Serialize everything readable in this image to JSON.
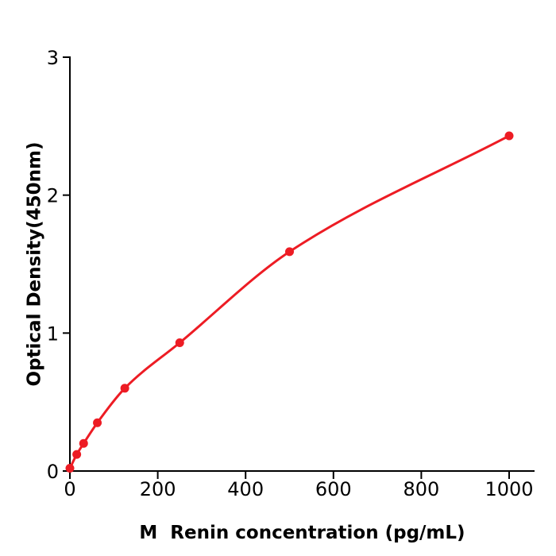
{
  "figure": {
    "background": "#ffffff"
  },
  "chart_data": {
    "type": "line",
    "title": "",
    "xlabel": "M  Renin concentration (pg/mL)",
    "ylabel": "Optical Density(450nm)",
    "x": [
      0,
      15.6,
      31.2,
      62.5,
      125,
      250,
      500,
      1000
    ],
    "y": [
      0.02,
      0.12,
      0.2,
      0.35,
      0.6,
      0.93,
      1.59,
      2.43
    ],
    "x_ticks": [
      0,
      200,
      400,
      600,
      800,
      1000
    ],
    "y_ticks": [
      0,
      1,
      2,
      3
    ],
    "xlim": [
      0,
      1058
    ],
    "ylim": [
      0,
      3
    ],
    "grid": false,
    "legend": null,
    "line_color": "#ED1C24",
    "axis_color": "#000000",
    "marker": "circle",
    "marker_radius": 5.5,
    "line_width": 3
  }
}
